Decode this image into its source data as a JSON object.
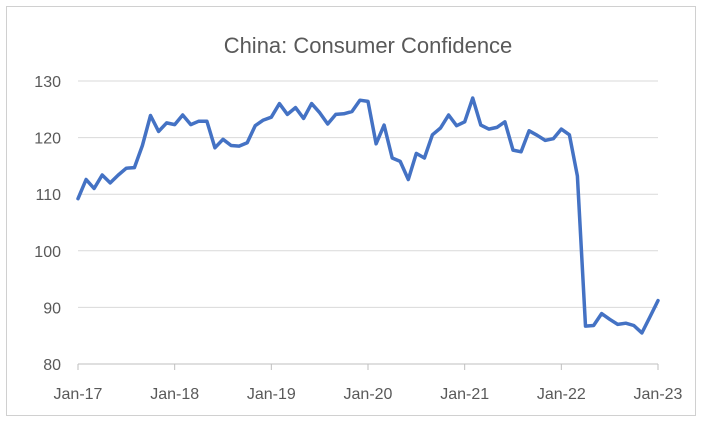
{
  "chart_data": {
    "type": "line",
    "title": "China: Consumer Confidence",
    "xlabel": "",
    "ylabel": "",
    "ylim": [
      80,
      130
    ],
    "yticks": [
      80,
      90,
      100,
      110,
      120,
      130
    ],
    "xticks": [
      "Jan-17",
      "Jan-18",
      "Jan-19",
      "Jan-20",
      "Jan-21",
      "Jan-22",
      "Jan-23"
    ],
    "grid": "horizontal",
    "legend": "none",
    "series": [
      {
        "color": "#4472C4",
        "x": [
          "2017-01",
          "2017-02",
          "2017-03",
          "2017-04",
          "2017-05",
          "2017-06",
          "2017-07",
          "2017-08",
          "2017-09",
          "2017-10",
          "2017-11",
          "2017-12",
          "2018-01",
          "2018-02",
          "2018-03",
          "2018-04",
          "2018-05",
          "2018-06",
          "2018-07",
          "2018-08",
          "2018-09",
          "2018-10",
          "2018-11",
          "2018-12",
          "2019-01",
          "2019-02",
          "2019-03",
          "2019-04",
          "2019-05",
          "2019-06",
          "2019-07",
          "2019-08",
          "2019-09",
          "2019-10",
          "2019-11",
          "2019-12",
          "2020-01",
          "2020-02",
          "2020-03",
          "2020-04",
          "2020-05",
          "2020-06",
          "2020-07",
          "2020-08",
          "2020-09",
          "2020-10",
          "2020-11",
          "2020-12",
          "2021-01",
          "2021-02",
          "2021-03",
          "2021-04",
          "2021-05",
          "2021-06",
          "2021-07",
          "2021-08",
          "2021-09",
          "2021-10",
          "2021-11",
          "2021-12",
          "2022-01",
          "2022-02",
          "2022-03",
          "2022-04",
          "2022-05",
          "2022-06",
          "2022-07",
          "2022-08",
          "2022-09",
          "2022-10",
          "2022-11",
          "2022-12",
          "2023-01"
        ],
        "values": [
          109.2,
          112.6,
          111.0,
          113.4,
          112.0,
          113.4,
          114.6,
          114.7,
          118.6,
          123.9,
          121.1,
          122.6,
          122.3,
          124.0,
          122.3,
          122.9,
          122.9,
          118.2,
          119.7,
          118.6,
          118.5,
          119.1,
          122.1,
          123.1,
          123.6,
          126.0,
          124.1,
          125.3,
          123.4,
          126.0,
          124.4,
          122.4,
          124.1,
          124.2,
          124.6,
          126.6,
          126.4,
          118.9,
          122.2,
          116.4,
          115.8,
          112.6,
          117.2,
          116.4,
          120.5,
          121.7,
          124.0,
          122.1,
          122.8,
          127.0,
          122.2,
          121.5,
          121.8,
          122.8,
          117.8,
          117.5,
          121.2,
          120.4,
          119.5,
          119.8,
          121.5,
          120.5,
          113.2,
          86.7,
          86.8,
          88.9,
          87.9,
          87.0,
          87.2,
          86.8,
          85.5,
          88.3,
          91.2
        ]
      }
    ]
  }
}
